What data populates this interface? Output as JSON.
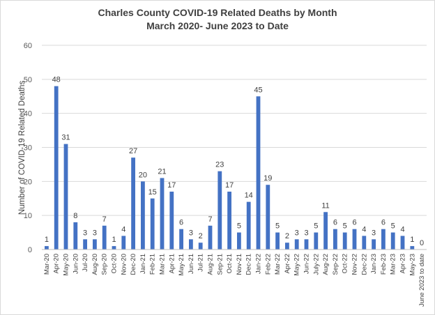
{
  "chart_data": {
    "type": "bar",
    "title_line1": "Charles County COVID-19 Related Deaths by Month",
    "title_line2": "March 2020- June 2023 to Date",
    "xlabel": "",
    "ylabel": "Number  of COVID-19 Related Deaths",
    "ylim": [
      0,
      60
    ],
    "yticks": [
      0,
      10,
      20,
      30,
      40,
      50,
      60
    ],
    "grid": true,
    "legend": "none",
    "bar_color": "#4472C4",
    "grid_color": "#d9d9d9",
    "categories": [
      "Mar-20",
      "Apr-20",
      "May-20",
      "Jun-20",
      "Jul-20",
      "Aug-20",
      "Sep-20",
      "Oct-20",
      "Nov-20",
      "Dec-20",
      "Jan-21",
      "Feb-21",
      "Mar-21",
      "Apr-21",
      "May-21",
      "Jun-21",
      "Jul-21",
      "Aug-21",
      "Sep-21",
      "Oct-21",
      "Nov-21",
      "Dec-21",
      "Jan-22",
      "Feb-22",
      "Mar-22",
      "Apr-22",
      "May-22",
      "Jun-22",
      "July-22",
      "Aug-22",
      "Sep-22",
      "Oct-22",
      "Nov-22",
      "Dec-22",
      "Jan-23",
      "Feb-23",
      "Mar-23",
      "Apr-23",
      "May-23",
      "June 2023 to date"
    ],
    "values": [
      1,
      48,
      31,
      8,
      3,
      3,
      7,
      1,
      4,
      27,
      20,
      15,
      21,
      17,
      6,
      3,
      2,
      7,
      23,
      17,
      5,
      14,
      45,
      19,
      5,
      2,
      3,
      3,
      5,
      11,
      6,
      5,
      6,
      4,
      3,
      6,
      5,
      4,
      1,
      0
    ]
  }
}
